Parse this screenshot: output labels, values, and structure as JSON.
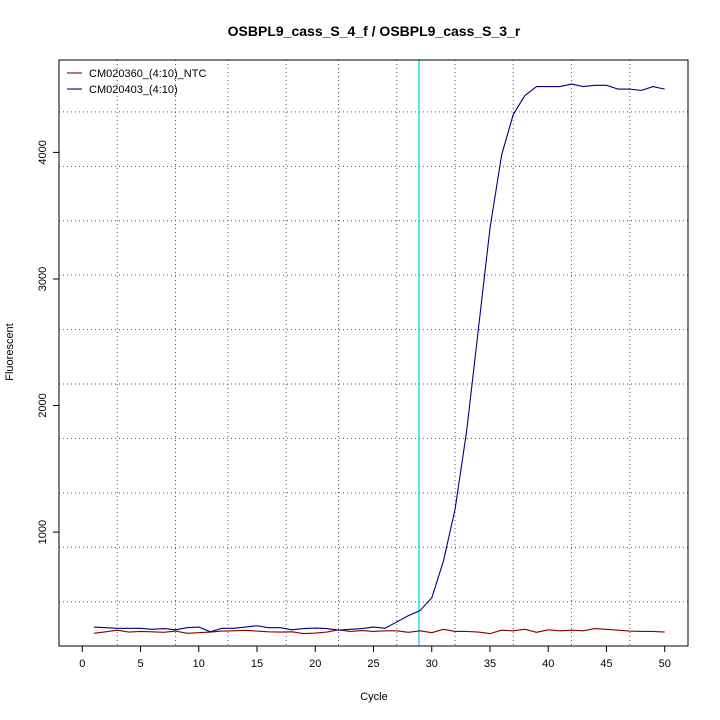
{
  "chart_data": {
    "type": "line",
    "title": "OSBPL9_cass_S_4_f / OSBPL9_cass_S_3_r",
    "xlabel": "Cycle",
    "ylabel": "Fluorescent",
    "xlim": [
      -2,
      52
    ],
    "ylim": [
      100,
      4730
    ],
    "x_ticks": [
      0,
      5,
      10,
      15,
      20,
      25,
      30,
      35,
      40,
      45,
      50
    ],
    "x_tick_labels": [
      "0",
      "5",
      "10",
      "15",
      "20",
      "25",
      "30",
      "35",
      "40",
      "45",
      "50"
    ],
    "y_ticks": [
      1000,
      2000,
      3000,
      4000
    ],
    "y_tick_labels": [
      "1000",
      "2000",
      "3000",
      "4000"
    ],
    "grid": true,
    "grid_style": "dotted",
    "x_grid": [
      3,
      8,
      12.5,
      17.5,
      22,
      27,
      32,
      37,
      42,
      47
    ],
    "y_grid": [
      450,
      880,
      1310,
      1740,
      2170,
      2600,
      3030,
      3460,
      3890,
      4320
    ],
    "threshold_x": 28.9,
    "threshold_color": "#00d0e8",
    "legend_position": "top-left",
    "x": [
      1,
      2,
      3,
      4,
      5,
      6,
      7,
      8,
      9,
      10,
      11,
      12,
      13,
      14,
      15,
      16,
      17,
      18,
      19,
      20,
      21,
      22,
      23,
      24,
      25,
      26,
      27,
      28,
      29,
      30,
      31,
      32,
      33,
      34,
      35,
      36,
      37,
      38,
      39,
      40,
      41,
      42,
      43,
      44,
      45,
      46,
      47,
      48,
      49,
      50
    ],
    "series": [
      {
        "name": "CM020360_(4:10)_NTC",
        "color": "#8b0000",
        "values": [
          200,
          212,
          225,
          210,
          215,
          212,
          208,
          218,
          200,
          205,
          210,
          218,
          220,
          224,
          218,
          212,
          210,
          212,
          198,
          202,
          210,
          228,
          215,
          222,
          215,
          220,
          220,
          208,
          220,
          205,
          232,
          215,
          215,
          210,
          198,
          225,
          220,
          232,
          208,
          228,
          220,
          225,
          220,
          238,
          232,
          225,
          218,
          215,
          215,
          210
        ]
      },
      {
        "name": "CM020403_(4:10)",
        "color": "#000080",
        "values": [
          250,
          245,
          240,
          240,
          240,
          232,
          238,
          228,
          245,
          250,
          212,
          240,
          240,
          250,
          260,
          245,
          245,
          228,
          238,
          242,
          238,
          225,
          232,
          238,
          250,
          240,
          290,
          340,
          380,
          480,
          770,
          1180,
          1800,
          2600,
          3400,
          3980,
          4300,
          4450,
          4520,
          4520,
          4520,
          4540,
          4520,
          4530,
          4530,
          4500,
          4500,
          4490,
          4520,
          4500
        ]
      }
    ]
  }
}
